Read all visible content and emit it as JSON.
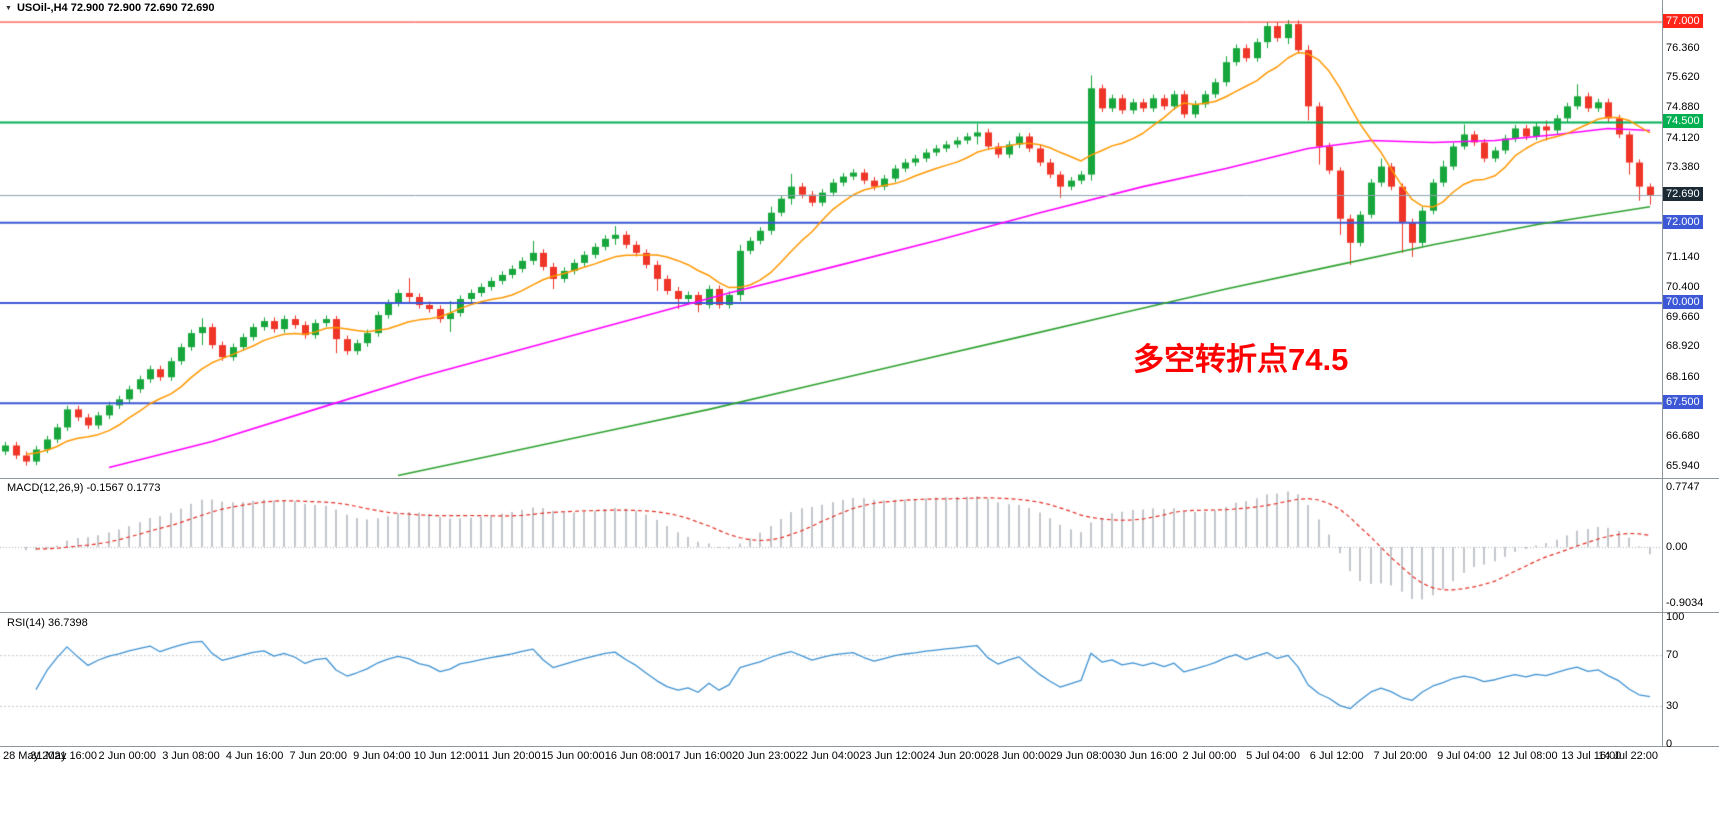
{
  "window": {
    "bg": "#ffffff"
  },
  "symbol_bar": {
    "text": "USOil-,H4 72.900 72.900 72.690 72.690"
  },
  "annotation": {
    "text": "多空转折点74.5",
    "color": "#ff0000"
  },
  "macd_panel": {
    "label": "MACD(12,26,9) -0.1567 0.1773"
  },
  "rsi_panel": {
    "label": "RSI(14) 36.7398"
  },
  "chart_data": {
    "type": "candlestick",
    "symbol": "USOil-",
    "timeframe": "H4",
    "quote": {
      "open": "72.900",
      "high": "72.900",
      "low": "72.690",
      "close": "72.690"
    },
    "price_axis": {
      "min": 65.64,
      "max": 77.55,
      "gridlines": [
        {
          "text": "76.360",
          "price": 76.36
        },
        {
          "text": "75.620",
          "price": 75.62
        },
        {
          "text": "74.880",
          "price": 74.88
        },
        {
          "text": "74.120",
          "price": 74.12
        },
        {
          "text": "73.380",
          "price": 73.38
        },
        {
          "text": "71.140",
          "price": 71.14
        },
        {
          "text": "70.400",
          "price": 70.4
        },
        {
          "text": "69.660",
          "price": 69.66
        },
        {
          "text": "68.920",
          "price": 68.92
        },
        {
          "text": "68.160",
          "price": 68.16
        },
        {
          "text": "66.680",
          "price": 66.68
        },
        {
          "text": "65.940",
          "price": 65.94
        }
      ]
    },
    "levels": [
      {
        "price": 77.0,
        "label": "77.000",
        "color": "#ff2418",
        "width": 1
      },
      {
        "price": 74.5,
        "label": "74.500",
        "color": "#00b050",
        "width": 2
      },
      {
        "price": 72.0,
        "label": "72.000",
        "color": "#3c58d6",
        "width": 2
      },
      {
        "price": 70.0,
        "label": "70.000",
        "color": "#3c58d6",
        "width": 2
      },
      {
        "price": 67.5,
        "label": "67.500",
        "color": "#3c58d6",
        "width": 2
      }
    ],
    "current_price": {
      "value": 72.69,
      "label": "72.690",
      "line_color": "#8ba3ae",
      "bg": "#1c2a36"
    },
    "candles": {
      "up_color": "#17a63b",
      "down_color": "#ee3528",
      "wick": 0.09,
      "open0": 66.3,
      "closes": [
        66.45,
        66.2,
        66.05,
        66.35,
        66.6,
        66.9,
        67.35,
        67.15,
        66.95,
        67.2,
        67.45,
        67.6,
        67.85,
        68.1,
        68.35,
        68.15,
        68.55,
        68.9,
        69.25,
        69.4,
        68.95,
        68.65,
        68.9,
        69.15,
        69.4,
        69.55,
        69.35,
        69.6,
        69.45,
        69.2,
        69.5,
        69.6,
        69.1,
        68.8,
        69.0,
        69.25,
        69.7,
        70.0,
        70.25,
        70.15,
        69.95,
        69.85,
        69.6,
        69.75,
        70.1,
        70.25,
        70.4,
        70.55,
        70.7,
        70.85,
        71.05,
        71.25,
        70.9,
        70.6,
        70.8,
        71.0,
        71.2,
        71.4,
        71.6,
        71.7,
        71.45,
        71.25,
        70.95,
        70.6,
        70.3,
        70.1,
        70.2,
        69.95,
        70.35,
        69.95,
        70.2,
        71.3,
        71.55,
        71.8,
        72.25,
        72.6,
        72.9,
        72.7,
        72.5,
        72.75,
        73.0,
        73.15,
        73.25,
        73.05,
        72.9,
        73.1,
        73.35,
        73.5,
        73.6,
        73.75,
        73.85,
        73.95,
        74.05,
        74.15,
        74.25,
        73.9,
        73.7,
        73.95,
        74.15,
        73.85,
        73.5,
        73.2,
        72.9,
        73.05,
        73.2,
        75.35,
        74.85,
        75.1,
        74.8,
        75.0,
        74.85,
        75.1,
        74.9,
        75.2,
        74.7,
        74.95,
        75.2,
        75.5,
        76.0,
        76.35,
        76.1,
        76.5,
        76.9,
        76.6,
        76.95,
        76.3,
        74.9,
        73.9,
        73.3,
        72.1,
        71.5,
        72.2,
        73.0,
        73.4,
        72.9,
        72.0,
        71.5,
        72.3,
        73.0,
        73.4,
        73.9,
        74.2,
        74.0,
        73.6,
        73.8,
        74.1,
        74.35,
        74.15,
        74.4,
        74.3,
        74.6,
        74.9,
        75.15,
        74.85,
        75.0,
        74.6,
        74.2,
        73.5,
        72.9,
        72.69
      ],
      "extremes": {
        "2": [
          66.3,
          65.95
        ],
        "19": [
          69.62,
          68.95
        ],
        "32": [
          69.68,
          68.75
        ],
        "39": [
          70.62,
          69.98
        ],
        "43": [
          70.05,
          69.28
        ],
        "51": [
          71.55,
          70.95
        ],
        "53": [
          71.0,
          70.35
        ],
        "59": [
          71.92,
          71.45
        ],
        "63": [
          71.05,
          70.3
        ],
        "65": [
          70.4,
          69.85
        ],
        "67": [
          70.28,
          69.77
        ],
        "71": [
          71.45,
          70.05
        ],
        "74": [
          72.4,
          71.7
        ],
        "76": [
          73.22,
          72.45
        ],
        "94": [
          74.47,
          73.95
        ],
        "102": [
          73.28,
          72.62
        ],
        "105": [
          75.67,
          73.05
        ],
        "118": [
          76.15,
          75.4
        ],
        "122": [
          77.0,
          76.35
        ],
        "124": [
          77.05,
          76.45
        ],
        "126": [
          76.42,
          74.55
        ],
        "127": [
          75.0,
          73.45
        ],
        "129": [
          73.38,
          71.7
        ],
        "130": [
          72.2,
          70.95
        ],
        "133": [
          73.6,
          72.9
        ],
        "135": [
          72.98,
          71.25
        ],
        "136": [
          72.1,
          71.15
        ],
        "139": [
          73.55,
          72.9
        ],
        "141": [
          74.45,
          73.82
        ],
        "149": [
          74.55,
          74.05
        ],
        "152": [
          75.45,
          74.82
        ],
        "157": [
          74.28,
          73.2
        ],
        "158": [
          73.58,
          72.55
        ],
        "159": [
          72.98,
          72.45
        ]
      }
    },
    "moving_averages": {
      "fast": {
        "color": "#ff9800",
        "period": 10
      },
      "mid": {
        "color": "#ff00ff",
        "points": [
          [
            10,
            65.9
          ],
          [
            20,
            66.55
          ],
          [
            30,
            67.35
          ],
          [
            40,
            68.15
          ],
          [
            50,
            68.85
          ],
          [
            60,
            69.55
          ],
          [
            70,
            70.25
          ],
          [
            80,
            70.9
          ],
          [
            90,
            71.55
          ],
          [
            100,
            72.25
          ],
          [
            110,
            72.9
          ],
          [
            118,
            73.35
          ],
          [
            126,
            73.85
          ],
          [
            132,
            74.05
          ],
          [
            138,
            74.0
          ],
          [
            144,
            74.05
          ],
          [
            150,
            74.2
          ],
          [
            155,
            74.35
          ],
          [
            159,
            74.3
          ]
        ]
      },
      "slow": {
        "color": "#2da12f",
        "points": [
          [
            38,
            65.7
          ],
          [
            48,
            66.25
          ],
          [
            58,
            66.8
          ],
          [
            68,
            67.35
          ],
          [
            78,
            67.95
          ],
          [
            88,
            68.55
          ],
          [
            98,
            69.15
          ],
          [
            108,
            69.75
          ],
          [
            118,
            70.35
          ],
          [
            128,
            70.9
          ],
          [
            138,
            71.45
          ],
          [
            148,
            71.95
          ],
          [
            159,
            72.4
          ]
        ]
      }
    },
    "macd": {
      "fast": 12,
      "slow": 26,
      "signal": 9,
      "hist_color": "#c3c7cc",
      "signal_color": "#e33127",
      "axis_labels": {
        "top": "0.7747",
        "zero": "0.00",
        "bottom": "-0.9034"
      },
      "values_text": "-0.1567 0.1773"
    },
    "rsi": {
      "period": 14,
      "color": "#3f92d2",
      "levels": [
        70,
        30
      ],
      "axis_labels": [
        {
          "text": "100",
          "value": 100
        },
        {
          "text": "70",
          "value": 70
        },
        {
          "text": "30",
          "value": 30
        },
        {
          "text": "0",
          "value": 0
        }
      ],
      "value_text": "36.7398"
    },
    "time_labels": [
      "28 May 2021",
      "31 May 16:00",
      "2 Jun 00:00",
      "3 Jun 08:00",
      "4 Jun 16:00",
      "7 Jun 20:00",
      "9 Jun 04:00",
      "10 Jun 12:00",
      "11 Jun 20:00",
      "15 Jun 00:00",
      "16 Jun 08:00",
      "17 Jun 16:00",
      "20 Jun 23:00",
      "22 Jun 04:00",
      "23 Jun 12:00",
      "24 Jun 20:00",
      "28 Jun 00:00",
      "29 Jun 08:00",
      "30 Jun 16:00",
      "2 Jul 00:00",
      "5 Jul 04:00",
      "6 Jul 12:00",
      "7 Jul 20:00",
      "9 Jul 04:00",
      "12 Jul 08:00",
      "13 Jul 16:00",
      "14 Jul 22:00"
    ]
  }
}
